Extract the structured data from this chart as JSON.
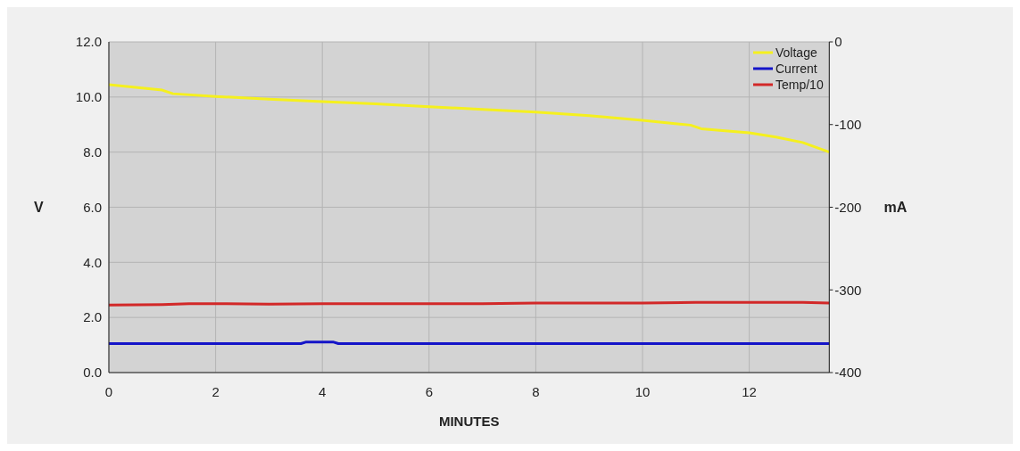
{
  "chart_data": {
    "type": "line",
    "xlabel": "MINUTES",
    "ylabel": "V",
    "y2label": "mA",
    "xlim": [
      0,
      13.5
    ],
    "xticks": [
      0,
      2,
      4,
      6,
      8,
      10,
      12
    ],
    "ylim": [
      0,
      12
    ],
    "yticks": [
      {
        "value": 0,
        "label": "0.0"
      },
      {
        "value": 2,
        "label": "2.0"
      },
      {
        "value": 4,
        "label": "4.0"
      },
      {
        "value": 6,
        "label": "6.0"
      },
      {
        "value": 8,
        "label": "8.0"
      },
      {
        "value": 10,
        "label": "10.0"
      },
      {
        "value": 12,
        "label": "12.0"
      }
    ],
    "y2lim": [
      -400,
      0
    ],
    "y2ticks": [
      -400,
      -300,
      -200,
      -100,
      0
    ],
    "grid": true,
    "legend": "top right",
    "marker": "none",
    "line_style": "solid",
    "series": [
      {
        "name": "Voltage",
        "color": "#f5f01e",
        "x": [
          0,
          0.5,
          1,
          1.2,
          2,
          3,
          4,
          5,
          6,
          7,
          8,
          9,
          10,
          10.9,
          11.1,
          12,
          12.5,
          13,
          13.5
        ],
        "values": [
          10.45,
          10.35,
          10.25,
          10.12,
          10.02,
          9.92,
          9.83,
          9.75,
          9.65,
          9.55,
          9.45,
          9.32,
          9.15,
          8.98,
          8.85,
          8.7,
          8.55,
          8.35,
          8.0
        ]
      },
      {
        "name": "Current",
        "color": "#1414c8",
        "axis": "y2",
        "x": [
          0,
          3.6,
          3.7,
          4.2,
          4.3,
          13.5
        ],
        "values": [
          -365,
          -365,
          -363,
          -363,
          -365,
          -365
        ]
      },
      {
        "name": "Temp/10",
        "color": "#d22828",
        "x": [
          0,
          1,
          1.5,
          2,
          3,
          4,
          5,
          6,
          7,
          8,
          9,
          10,
          11,
          12,
          13,
          13.5
        ],
        "values": [
          2.45,
          2.47,
          2.5,
          2.5,
          2.48,
          2.5,
          2.5,
          2.5,
          2.5,
          2.52,
          2.52,
          2.52,
          2.55,
          2.55,
          2.55,
          2.52
        ]
      }
    ]
  }
}
